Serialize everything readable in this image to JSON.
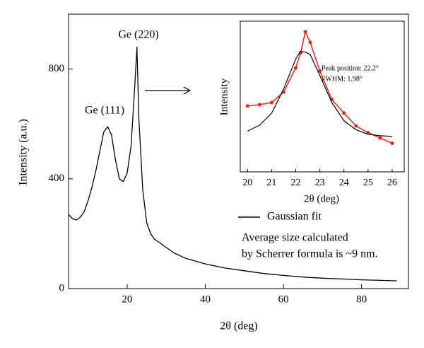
{
  "chart_data": [
    {
      "type": "line",
      "color": "#000000",
      "x": [
        5,
        6,
        7,
        8,
        9,
        10,
        11,
        12,
        13,
        14,
        15,
        16,
        17,
        18,
        19,
        20,
        21,
        22,
        22.5,
        23,
        24,
        25,
        26,
        27,
        28,
        30,
        32,
        35,
        40,
        45,
        50,
        55,
        60,
        65,
        70,
        75,
        80,
        85,
        89
      ],
      "values": [
        270,
        255,
        250,
        260,
        280,
        320,
        370,
        430,
        500,
        570,
        590,
        560,
        470,
        400,
        390,
        420,
        520,
        750,
        880,
        620,
        360,
        240,
        200,
        180,
        170,
        150,
        130,
        110,
        90,
        75,
        65,
        55,
        48,
        42,
        38,
        35,
        32,
        30,
        28
      ],
      "xlim": [
        5,
        92
      ],
      "ylim": [
        0,
        1000
      ],
      "xticks": [
        20,
        40,
        60,
        80
      ],
      "yticks": [
        0,
        400,
        800
      ],
      "xlabel": "2θ (deg)",
      "ylabel": "Intensity (a.u.)",
      "annotations": [
        "Ge (111)",
        "Ge (220)",
        "Average size calculated",
        "by Scherrer formula is ~9 nm."
      ]
    },
    {
      "type": "line",
      "x": [
        20,
        20.5,
        21,
        21.5,
        22,
        22.2,
        22.4,
        22.6,
        23,
        23.5,
        24,
        24.5,
        25,
        25.5,
        26
      ],
      "series": [
        {
          "color": "#e8231f",
          "values": [
            43.7,
            44.6,
            46,
            53,
            69,
            79,
            93,
            86,
            67,
            48,
            39,
            30.5,
            26,
            22.5,
            19
          ]
        },
        {
          "name": "Gaussian fit",
          "color": "#000000",
          "values": [
            27,
            31,
            39,
            55,
            75,
            80,
            79.5,
            78,
            64,
            46,
            34,
            28,
            25,
            24,
            23.5
          ]
        }
      ],
      "xlim": [
        19.7,
        26.5
      ],
      "ylim": [
        0,
        100
      ],
      "xticks": [
        20,
        21,
        22,
        23,
        24,
        25,
        26
      ],
      "xlabel": "2θ (deg)",
      "ylabel": "Intensity",
      "annotations": [
        "Peak position: 22.2°",
        "FWHM: 1.98°"
      ]
    }
  ]
}
